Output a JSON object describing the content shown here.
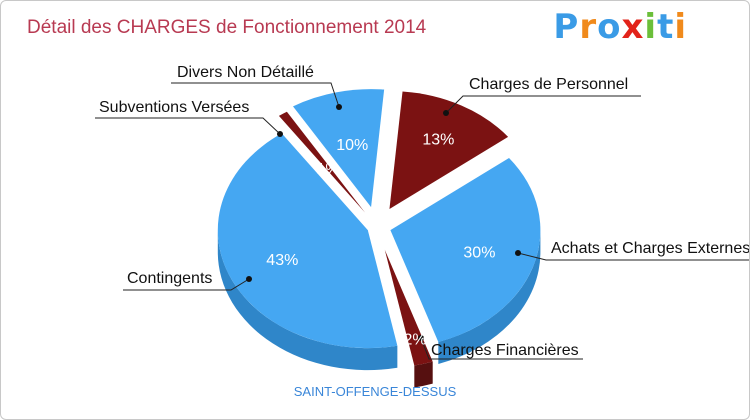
{
  "title": "Détail des CHARGES de Fonctionnement 2014",
  "logo": {
    "text": "Proxiti",
    "colors": [
      "#3a9be6",
      "#f08a1c",
      "#3a9be6",
      "#e2231a",
      "#6bbf3a",
      "#3a9be6",
      "#f08a1c"
    ]
  },
  "caption": "SAINT-OFFENGE-DESSUS",
  "colors": {
    "blue": "#45a7f2",
    "blue_side": "#2f86c9",
    "red": "#7b1212",
    "red_side": "#561010"
  },
  "chart_data": {
    "type": "pie",
    "title": "Détail des CHARGES de Fonctionnement 2014",
    "unit": "%",
    "slices": [
      {
        "label": "Charges de Personnel",
        "value": 13,
        "display": "13%",
        "color": "red"
      },
      {
        "label": "Achats et Charges Externes",
        "value": 30,
        "display": "30%",
        "color": "blue"
      },
      {
        "label": "Charges Financières",
        "value": 2,
        "display": "2%",
        "color": "red"
      },
      {
        "label": "Contingents",
        "value": 43,
        "display": "43%",
        "color": "blue"
      },
      {
        "label": "Subventions Versées",
        "value": 1,
        "display": "1%",
        "color": "red"
      },
      {
        "label": "Divers Non Détaillé",
        "value": 10,
        "display": "10%",
        "color": "blue"
      }
    ]
  }
}
